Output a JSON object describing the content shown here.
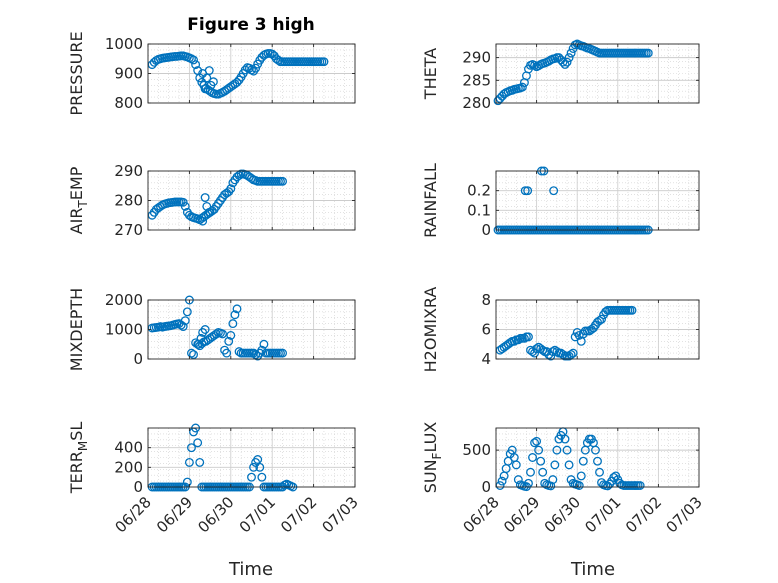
{
  "figure": {
    "title": "Figure 3 high",
    "marker_color": "#0072bd",
    "xlabel": "Time"
  },
  "chart_data": [
    {
      "type": "scatter",
      "ylabel": "PRESSURE",
      "ylim": [
        800,
        1000
      ],
      "yticks": [
        800,
        900,
        1000
      ],
      "xlim": [
        0,
        5
      ],
      "xticks": [],
      "show_xticklabels": false,
      "grid": true,
      "x": [
        0.1,
        0.15,
        0.2,
        0.25,
        0.3,
        0.35,
        0.4,
        0.45,
        0.5,
        0.55,
        0.6,
        0.65,
        0.7,
        0.75,
        0.8,
        0.85,
        0.9,
        0.95,
        1.0,
        1.05,
        1.1,
        1.15,
        1.2,
        1.25,
        1.3,
        1.35,
        1.4,
        1.45,
        1.5,
        1.55,
        1.6,
        1.65,
        1.7,
        1.75,
        1.8,
        1.85,
        1.9,
        1.95,
        2.0,
        2.05,
        2.1,
        2.15,
        2.2,
        2.25,
        2.3,
        2.35,
        2.4,
        2.45,
        2.5,
        2.55,
        2.6,
        2.65,
        2.7,
        2.75,
        2.8,
        2.85,
        2.9,
        2.95,
        3.0,
        3.05,
        3.1,
        3.15,
        3.2,
        3.25,
        3.3,
        3.35,
        3.4,
        3.45,
        3.5,
        3.55,
        3.6,
        3.65,
        3.7,
        3.75,
        3.8,
        3.85,
        3.9,
        3.95,
        4.0,
        4.05,
        4.1,
        4.15,
        4.2,
        4.25,
        1.32,
        1.38,
        1.42,
        1.48,
        1.52,
        1.58
      ],
      "y": [
        930,
        938,
        944,
        948,
        950,
        952,
        953,
        954,
        955,
        956,
        957,
        958,
        958,
        959,
        960,
        960,
        958,
        956,
        953,
        950,
        946,
        930,
        910,
        885,
        870,
        860,
        850,
        845,
        840,
        835,
        832,
        830,
        830,
        833,
        836,
        840,
        845,
        850,
        855,
        860,
        865,
        870,
        878,
        888,
        900,
        912,
        920,
        918,
        912,
        908,
        918,
        932,
        945,
        955,
        962,
        966,
        968,
        968,
        966,
        960,
        950,
        945,
        940,
        940,
        940,
        940,
        940,
        940,
        940,
        940,
        940,
        940,
        940,
        940,
        940,
        940,
        940,
        940,
        940,
        940,
        940,
        940,
        940,
        940,
        900,
        848,
        885,
        910,
        860,
        872
      ],
      "x_clip_max": 4.3
    },
    {
      "type": "scatter",
      "ylabel": "THETA",
      "ylim": [
        280,
        293
      ],
      "yticks": [
        280,
        285,
        290
      ],
      "xlim": [
        0,
        5
      ],
      "xticks": [],
      "show_xticklabels": false,
      "grid": true,
      "x": [
        0.05,
        0.1,
        0.15,
        0.2,
        0.25,
        0.3,
        0.35,
        0.4,
        0.45,
        0.5,
        0.55,
        0.6,
        0.65,
        0.7,
        0.75,
        0.8,
        0.85,
        0.9,
        0.95,
        1.0,
        1.05,
        1.1,
        1.15,
        1.2,
        1.25,
        1.3,
        1.35,
        1.4,
        1.45,
        1.5,
        1.55,
        1.6,
        1.65,
        1.7,
        1.75,
        1.8,
        1.85,
        1.9,
        1.95,
        2.0,
        2.05,
        2.1,
        2.15,
        2.2,
        2.25,
        2.3,
        2.35,
        2.4,
        2.45,
        2.5,
        2.55,
        2.6,
        2.65,
        2.7,
        2.75,
        2.8,
        2.85,
        2.9,
        2.95,
        3.0,
        3.05,
        3.1,
        3.15,
        3.2,
        3.25,
        3.3,
        3.35,
        3.4,
        3.45,
        3.5,
        3.55,
        3.6,
        3.65,
        3.7,
        3.75
      ],
      "y": [
        280.5,
        281,
        281.5,
        282,
        282.3,
        282.5,
        282.7,
        282.8,
        283,
        283.1,
        283.2,
        283.3,
        283.5,
        284.5,
        286,
        287.5,
        288.3,
        288.5,
        288.3,
        288,
        288.2,
        288.5,
        288.7,
        288.8,
        289,
        289.2,
        289.5,
        289.7,
        289.8,
        290,
        290,
        289.5,
        289,
        288.5,
        289,
        290,
        291,
        292,
        292.8,
        293,
        292.8,
        292.6,
        292.5,
        292.3,
        292.1,
        292,
        291.8,
        291.6,
        291.4,
        291.2,
        291,
        291,
        291,
        291,
        291,
        291,
        291,
        291,
        291,
        291,
        291,
        291,
        291,
        291,
        291,
        291,
        291,
        291,
        291,
        291,
        291,
        291,
        291,
        291,
        291
      ]
    },
    {
      "type": "scatter",
      "ylabel": "AIR_TEMP",
      "ylim": [
        270,
        290
      ],
      "yticks": [
        270,
        280,
        290
      ],
      "xlim": [
        0,
        5
      ],
      "xticks": [],
      "show_xticklabels": false,
      "grid": true,
      "x": [
        0.1,
        0.15,
        0.2,
        0.25,
        0.3,
        0.35,
        0.4,
        0.45,
        0.5,
        0.55,
        0.6,
        0.65,
        0.7,
        0.75,
        0.8,
        0.85,
        0.9,
        0.95,
        1.0,
        1.05,
        1.1,
        1.15,
        1.2,
        1.25,
        1.3,
        1.35,
        1.4,
        1.45,
        1.5,
        1.55,
        1.6,
        1.65,
        1.7,
        1.75,
        1.8,
        1.85,
        1.9,
        1.95,
        2.0,
        2.05,
        2.1,
        2.15,
        2.2,
        2.25,
        2.3,
        2.35,
        2.4,
        2.45,
        2.5,
        2.55,
        2.6,
        2.65,
        2.7,
        2.75,
        2.8,
        2.85,
        2.9,
        2.95,
        3.0,
        3.05,
        3.1,
        3.15,
        3.2,
        3.25,
        1.32,
        1.38,
        1.42,
        1.48
      ],
      "y": [
        275,
        276,
        277,
        277.5,
        278,
        278.5,
        278.8,
        279,
        279.2,
        279.3,
        279.4,
        279.5,
        279.5,
        279.5,
        279.5,
        279.4,
        278,
        276,
        275,
        274.5,
        274.2,
        274,
        273.8,
        273.5,
        274,
        274.5,
        275,
        275.5,
        276,
        276.5,
        277,
        278,
        279,
        280,
        281,
        282,
        282.5,
        283,
        284,
        286,
        287,
        288,
        288.5,
        289,
        289,
        288.8,
        288.5,
        288,
        287.5,
        287,
        286.8,
        286.5,
        286.5,
        286.5,
        286.5,
        286.5,
        286.5,
        286.5,
        286.5,
        286.5,
        286.5,
        286.5,
        286.5,
        286.5,
        273,
        281,
        278,
        276
      ],
      "x_clip_max": 3.5
    },
    {
      "type": "scatter",
      "ylabel": "RAINFALL",
      "ylim": [
        0,
        0.3
      ],
      "yticks": [
        0,
        0.1,
        0.2
      ],
      "xlim": [
        0,
        5
      ],
      "xticks": [],
      "show_xticklabels": false,
      "grid": true,
      "x": [
        0.05,
        0.1,
        0.15,
        0.2,
        0.25,
        0.3,
        0.35,
        0.4,
        0.45,
        0.5,
        0.55,
        0.6,
        0.65,
        0.7,
        0.75,
        0.8,
        0.85,
        0.9,
        0.95,
        1.0,
        1.05,
        1.1,
        1.15,
        1.2,
        1.25,
        1.3,
        1.35,
        1.4,
        1.45,
        1.5,
        1.55,
        1.6,
        1.65,
        1.7,
        1.75,
        1.8,
        1.85,
        1.9,
        1.95,
        2.0,
        2.05,
        2.1,
        2.15,
        2.2,
        2.25,
        2.3,
        2.35,
        2.4,
        2.45,
        2.5,
        2.55,
        2.6,
        2.65,
        2.7,
        2.75,
        2.8,
        2.85,
        2.9,
        2.95,
        3.0,
        3.05,
        3.1,
        3.15,
        3.2,
        3.25,
        3.3,
        3.35,
        3.4,
        3.45,
        3.5,
        3.55,
        3.6,
        3.65,
        3.7,
        3.75,
        0.72,
        0.78,
        1.12,
        1.18,
        1.42
      ],
      "y": [
        0,
        0,
        0,
        0,
        0,
        0,
        0,
        0,
        0,
        0,
        0,
        0,
        0,
        0,
        0,
        0,
        0,
        0,
        0,
        0,
        0,
        0,
        0,
        0,
        0,
        0,
        0,
        0,
        0,
        0,
        0,
        0,
        0,
        0,
        0,
        0,
        0,
        0,
        0,
        0,
        0,
        0,
        0,
        0,
        0,
        0,
        0,
        0,
        0,
        0,
        0,
        0,
        0,
        0,
        0,
        0,
        0,
        0,
        0,
        0,
        0,
        0,
        0,
        0,
        0,
        0,
        0,
        0,
        0,
        0,
        0,
        0,
        0,
        0,
        0,
        0.2,
        0.2,
        0.3,
        0.3,
        0.2
      ]
    },
    {
      "type": "scatter",
      "ylabel": "MIXDEPTH",
      "ylim": [
        0,
        2000
      ],
      "yticks": [
        0,
        1000,
        2000
      ],
      "xlim": [
        0,
        5
      ],
      "xticks": [],
      "show_xticklabels": false,
      "grid": true,
      "x": [
        0.1,
        0.15,
        0.2,
        0.25,
        0.3,
        0.35,
        0.4,
        0.45,
        0.5,
        0.55,
        0.6,
        0.65,
        0.7,
        0.75,
        0.8,
        0.85,
        0.9,
        0.95,
        1.0,
        1.05,
        1.1,
        1.15,
        1.2,
        1.25,
        1.3,
        1.35,
        1.4,
        1.45,
        1.5,
        1.55,
        1.6,
        1.65,
        1.7,
        1.75,
        1.8,
        1.85,
        1.9,
        1.95,
        2.0,
        2.05,
        2.1,
        2.15,
        2.2,
        2.25,
        2.3,
        2.35,
        2.4,
        2.45,
        2.5,
        2.55,
        2.6,
        2.65,
        2.7,
        2.75,
        2.8,
        2.85,
        2.9,
        2.95,
        3.0,
        3.05,
        3.1,
        3.15,
        3.2,
        3.25,
        1.22,
        1.28,
        1.32,
        1.38
      ],
      "y": [
        1050,
        1060,
        1070,
        1080,
        1100,
        1080,
        1100,
        1110,
        1120,
        1130,
        1150,
        1170,
        1190,
        1200,
        1150,
        1100,
        1300,
        1600,
        2000,
        200,
        150,
        550,
        500,
        450,
        520,
        580,
        600,
        650,
        700,
        750,
        800,
        850,
        900,
        880,
        850,
        300,
        200,
        600,
        800,
        1200,
        1500,
        1700,
        250,
        200,
        200,
        200,
        200,
        200,
        200,
        200,
        150,
        100,
        200,
        300,
        500,
        200,
        200,
        200,
        200,
        200,
        200,
        200,
        200,
        200,
        500,
        700,
        900,
        1000
      ],
      "x_clip_max": 2.6
    },
    {
      "type": "scatter",
      "ylabel": "H2OMIXRA",
      "ylim": [
        4,
        8
      ],
      "yticks": [
        4,
        6,
        8
      ],
      "xlim": [
        0,
        5
      ],
      "xticks": [],
      "show_xticklabels": false,
      "grid": true,
      "x": [
        0.1,
        0.15,
        0.2,
        0.25,
        0.3,
        0.35,
        0.4,
        0.45,
        0.5,
        0.55,
        0.6,
        0.65,
        0.7,
        0.75,
        0.8,
        0.85,
        0.9,
        0.95,
        1.0,
        1.05,
        1.1,
        1.15,
        1.2,
        1.25,
        1.3,
        1.35,
        1.4,
        1.45,
        1.5,
        1.55,
        1.6,
        1.65,
        1.7,
        1.75,
        1.8,
        1.85,
        1.9,
        1.95,
        2.0,
        2.05,
        2.1,
        2.15,
        2.2,
        2.25,
        2.3,
        2.35,
        2.4,
        2.45,
        2.5,
        2.55,
        2.6,
        2.65,
        2.7,
        2.75,
        2.8,
        2.85,
        2.9,
        2.95,
        3.0,
        3.05,
        3.1,
        3.15,
        3.2,
        3.25,
        3.3,
        3.35
      ],
      "y": [
        4.6,
        4.7,
        4.8,
        4.9,
        5.0,
        5.1,
        5.2,
        5.2,
        5.3,
        5.3,
        5.4,
        5.4,
        5.4,
        5.5,
        5.5,
        4.6,
        4.5,
        4.4,
        4.7,
        4.8,
        4.7,
        4.6,
        4.5,
        4.5,
        4.3,
        4.2,
        4.5,
        4.6,
        4.5,
        4.4,
        4.4,
        4.3,
        4.2,
        4.2,
        4.2,
        4.3,
        4.4,
        5.5,
        5.8,
        5.6,
        5.2,
        5.7,
        5.9,
        5.9,
        5.9,
        6.0,
        6.1,
        6.3,
        6.5,
        6.6,
        6.7,
        7.0,
        7.2,
        7.3,
        7.3,
        7.3,
        7.3,
        7.3,
        7.3,
        7.3,
        7.3,
        7.3,
        7.3,
        7.3,
        7.3,
        7.3
      ],
      "x_clip_max": 3.65
    },
    {
      "type": "scatter",
      "ylabel": "TERR_MSL",
      "ylim": [
        0,
        600
      ],
      "yticks": [
        0,
        200,
        400
      ],
      "xlim": [
        0,
        5
      ],
      "xticks": [
        0,
        1,
        2,
        3,
        4,
        5
      ],
      "xticklabels": [
        "06/28",
        "06/29",
        "06/30",
        "07/01",
        "07/02",
        "07/03"
      ],
      "show_xticklabels": true,
      "grid": true,
      "x": [
        0.1,
        0.15,
        0.2,
        0.25,
        0.3,
        0.35,
        0.4,
        0.45,
        0.5,
        0.55,
        0.6,
        0.65,
        0.7,
        0.75,
        0.8,
        0.85,
        0.9,
        0.95,
        1.0,
        1.05,
        1.1,
        1.15,
        1.2,
        1.25,
        1.3,
        1.35,
        1.4,
        1.45,
        1.5,
        1.55,
        1.6,
        1.65,
        1.7,
        1.75,
        1.8,
        1.85,
        1.9,
        1.95,
        2.0,
        2.05,
        2.1,
        2.15,
        2.2,
        2.25,
        2.3,
        2.35,
        2.4,
        2.45,
        2.5,
        2.55,
        2.6,
        2.65,
        2.7,
        2.75,
        2.8,
        2.85,
        2.9,
        2.95,
        3.0,
        3.05,
        3.1,
        3.15,
        3.2,
        3.25,
        3.3,
        3.35,
        3.4,
        3.45,
        3.5
      ],
      "y": [
        0,
        0,
        0,
        0,
        0,
        0,
        0,
        0,
        0,
        0,
        0,
        0,
        0,
        0,
        0,
        0,
        0,
        50,
        250,
        400,
        560,
        600,
        450,
        250,
        0,
        0,
        0,
        0,
        0,
        0,
        0,
        0,
        0,
        0,
        0,
        0,
        0,
        0,
        0,
        0,
        0,
        0,
        0,
        0,
        0,
        0,
        0,
        0,
        100,
        200,
        250,
        280,
        200,
        100,
        0,
        0,
        0,
        0,
        0,
        0,
        0,
        0,
        0,
        0,
        20,
        30,
        20,
        10,
        0
      ],
      "x_clip_max": 3.6
    },
    {
      "type": "scatter",
      "ylabel": "SUN_FLUX",
      "ylim": [
        0,
        800
      ],
      "yticks": [
        0,
        500
      ],
      "xlim": [
        0,
        5
      ],
      "xticks": [
        0,
        1,
        2,
        3,
        4,
        5
      ],
      "xticklabels": [
        "06/28",
        "06/29",
        "06/30",
        "07/01",
        "07/02",
        "07/03"
      ],
      "show_xticklabels": true,
      "grid": true,
      "x": [
        0.1,
        0.15,
        0.2,
        0.25,
        0.3,
        0.35,
        0.4,
        0.45,
        0.5,
        0.55,
        0.6,
        0.65,
        0.7,
        0.75,
        0.8,
        0.85,
        0.9,
        0.95,
        1.0,
        1.05,
        1.1,
        1.15,
        1.2,
        1.25,
        1.3,
        1.35,
        1.4,
        1.45,
        1.5,
        1.55,
        1.6,
        1.65,
        1.7,
        1.75,
        1.8,
        1.85,
        1.9,
        1.95,
        2.0,
        2.05,
        2.1,
        2.15,
        2.2,
        2.25,
        2.3,
        2.35,
        2.4,
        2.45,
        2.5,
        2.55,
        2.6,
        2.65,
        2.7,
        2.75,
        2.8,
        2.85,
        2.9,
        2.95,
        3.0,
        3.05,
        3.1,
        3.15,
        3.2,
        3.25,
        3.3,
        3.35,
        3.4,
        3.45,
        3.5,
        3.55
      ],
      "y": [
        20,
        80,
        150,
        250,
        350,
        450,
        500,
        400,
        300,
        100,
        30,
        20,
        10,
        5,
        50,
        200,
        400,
        600,
        620,
        500,
        350,
        200,
        50,
        30,
        20,
        15,
        100,
        300,
        500,
        650,
        700,
        750,
        650,
        500,
        300,
        100,
        50,
        40,
        30,
        20,
        150,
        350,
        500,
        600,
        650,
        650,
        600,
        500,
        350,
        200,
        60,
        30,
        20,
        15,
        40,
        80,
        130,
        150,
        100,
        50,
        30,
        20,
        20,
        20,
        20,
        20,
        20,
        20,
        20,
        20
      ],
      "x_clip_max": 3.6
    }
  ]
}
